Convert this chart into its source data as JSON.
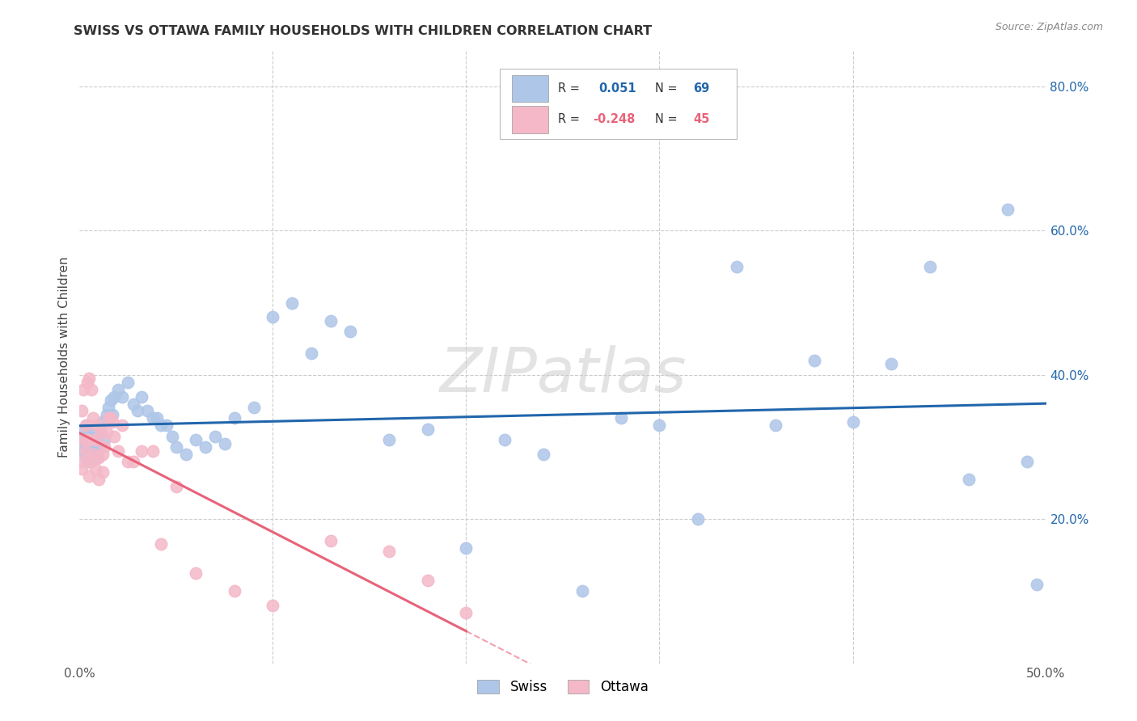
{
  "title": "SWISS VS OTTAWA FAMILY HOUSEHOLDS WITH CHILDREN CORRELATION CHART",
  "source": "Source: ZipAtlas.com",
  "ylabel": "Family Households with Children",
  "xlim": [
    0.0,
    0.5
  ],
  "ylim": [
    0.0,
    0.85
  ],
  "swiss_R": 0.051,
  "swiss_N": 69,
  "ottawa_R": -0.248,
  "ottawa_N": 45,
  "swiss_color": "#aec6e8",
  "ottawa_color": "#f4b8c8",
  "swiss_line_color": "#2166ac",
  "ottawa_line_color": "#e8637a",
  "watermark": "ZIPatlas",
  "swiss_x": [
    0.001,
    0.002,
    0.002,
    0.003,
    0.003,
    0.004,
    0.004,
    0.005,
    0.005,
    0.006,
    0.006,
    0.007,
    0.008,
    0.008,
    0.009,
    0.009,
    0.01,
    0.011,
    0.012,
    0.013,
    0.014,
    0.015,
    0.016,
    0.017,
    0.018,
    0.02,
    0.022,
    0.025,
    0.028,
    0.032,
    0.035,
    0.04,
    0.045,
    0.05,
    0.055,
    0.06,
    0.065,
    0.07,
    0.075,
    0.08,
    0.09,
    0.1,
    0.11,
    0.12,
    0.13,
    0.14,
    0.16,
    0.18,
    0.2,
    0.22,
    0.24,
    0.26,
    0.28,
    0.3,
    0.32,
    0.34,
    0.36,
    0.38,
    0.4,
    0.42,
    0.44,
    0.46,
    0.48,
    0.49,
    0.495,
    0.03,
    0.038,
    0.042,
    0.048
  ],
  "swiss_y": [
    0.31,
    0.295,
    0.32,
    0.305,
    0.285,
    0.315,
    0.33,
    0.3,
    0.28,
    0.295,
    0.31,
    0.325,
    0.29,
    0.305,
    0.315,
    0.285,
    0.3,
    0.32,
    0.335,
    0.31,
    0.345,
    0.355,
    0.365,
    0.345,
    0.37,
    0.38,
    0.37,
    0.39,
    0.36,
    0.37,
    0.35,
    0.34,
    0.33,
    0.3,
    0.29,
    0.31,
    0.3,
    0.315,
    0.305,
    0.34,
    0.355,
    0.48,
    0.5,
    0.43,
    0.475,
    0.46,
    0.31,
    0.325,
    0.16,
    0.31,
    0.29,
    0.1,
    0.34,
    0.33,
    0.2,
    0.55,
    0.33,
    0.42,
    0.335,
    0.415,
    0.55,
    0.255,
    0.63,
    0.28,
    0.11,
    0.35,
    0.34,
    0.33,
    0.315
  ],
  "ottawa_x": [
    0.001,
    0.001,
    0.002,
    0.002,
    0.002,
    0.003,
    0.003,
    0.004,
    0.004,
    0.005,
    0.005,
    0.005,
    0.006,
    0.006,
    0.007,
    0.007,
    0.008,
    0.008,
    0.009,
    0.01,
    0.01,
    0.011,
    0.012,
    0.012,
    0.013,
    0.014,
    0.015,
    0.016,
    0.017,
    0.018,
    0.02,
    0.022,
    0.025,
    0.028,
    0.032,
    0.038,
    0.042,
    0.05,
    0.06,
    0.08,
    0.1,
    0.13,
    0.16,
    0.18,
    0.2
  ],
  "ottawa_y": [
    0.35,
    0.27,
    0.38,
    0.31,
    0.28,
    0.33,
    0.295,
    0.39,
    0.31,
    0.395,
    0.31,
    0.26,
    0.38,
    0.28,
    0.34,
    0.29,
    0.31,
    0.27,
    0.33,
    0.285,
    0.255,
    0.32,
    0.29,
    0.265,
    0.3,
    0.32,
    0.34,
    0.34,
    0.335,
    0.315,
    0.295,
    0.33,
    0.28,
    0.28,
    0.295,
    0.295,
    0.165,
    0.245,
    0.125,
    0.1,
    0.08,
    0.17,
    0.155,
    0.115,
    0.07
  ]
}
